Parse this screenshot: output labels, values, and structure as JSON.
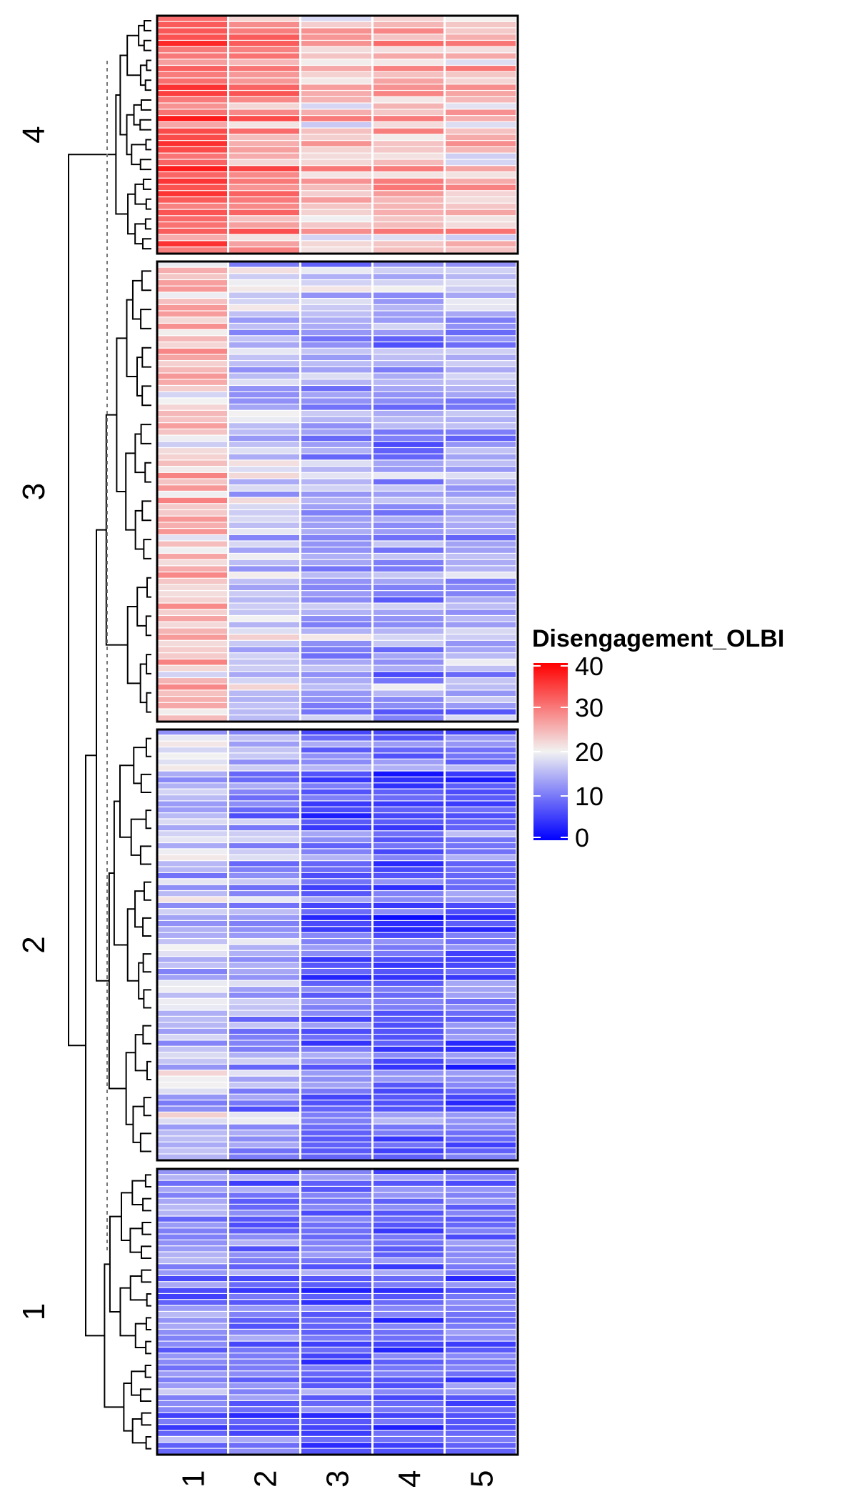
{
  "chart_data": {
    "type": "heatmap",
    "title": "",
    "columns": [
      "1",
      "2",
      "3",
      "4",
      "5"
    ],
    "row_clusters": [
      {
        "label": "4",
        "rows": 38,
        "mean_values": [
          32,
          28,
          24,
          25,
          24
        ]
      },
      {
        "label": "3",
        "rows": 74,
        "mean_values": [
          24,
          17,
          14,
          13,
          14
        ]
      },
      {
        "label": "2",
        "rows": 72,
        "mean_values": [
          16,
          13,
          9,
          8,
          9
        ]
      },
      {
        "label": "1",
        "rows": 48,
        "mean_values": [
          11,
          9,
          8,
          8,
          9
        ]
      }
    ],
    "legend": {
      "title": "Disengagement_OLBI",
      "ticks": [
        "0",
        "10",
        "20",
        "30",
        "40"
      ],
      "range": [
        0,
        40
      ],
      "colors": {
        "low": "#0000ff",
        "mid": "#f2f2f2",
        "high": "#ff0000"
      },
      "position": "right"
    },
    "dendrogram": true,
    "grid": false
  }
}
